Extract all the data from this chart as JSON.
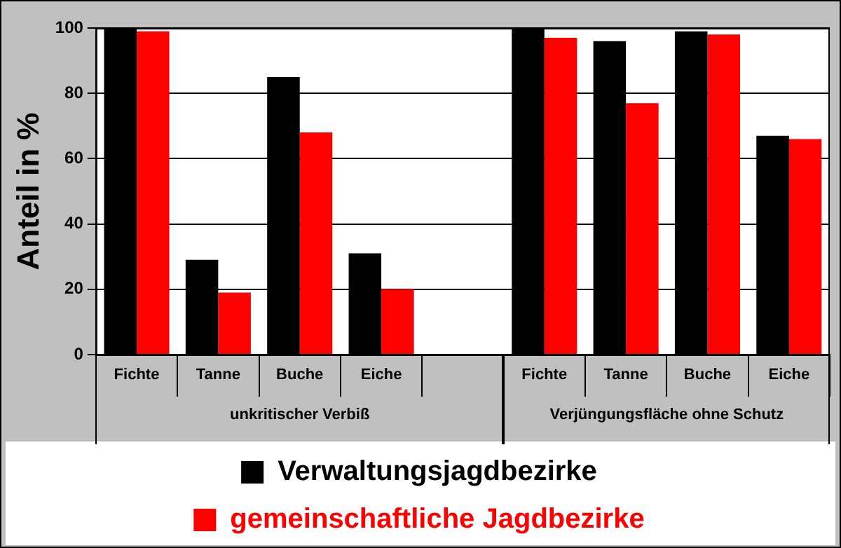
{
  "chart_data": {
    "type": "bar",
    "ylabel": "Anteil in %",
    "categories": [
      "Fichte",
      "Tanne",
      "Buche",
      "Eiche",
      null,
      "Fichte",
      "Tanne",
      "Buche",
      "Eiche"
    ],
    "series": [
      {
        "name": "Verwaltungsjagdbezirke",
        "color": "#000000",
        "values": [
          100,
          29,
          85,
          31,
          null,
          100,
          96,
          99,
          67
        ]
      },
      {
        "name": "gemeinschaftliche Jagdbezirke",
        "color": "#ff0000",
        "values": [
          99,
          19,
          68,
          20,
          null,
          97,
          77,
          98,
          66
        ]
      }
    ],
    "ylim": [
      0,
      100
    ],
    "yticks": [
      0,
      20,
      40,
      60,
      80,
      100
    ],
    "grid": "y",
    "legend": "bottom",
    "annotations": [
      "unkritischer Verbiß",
      "Verjüngungsfläche ohne Schutz"
    ]
  }
}
